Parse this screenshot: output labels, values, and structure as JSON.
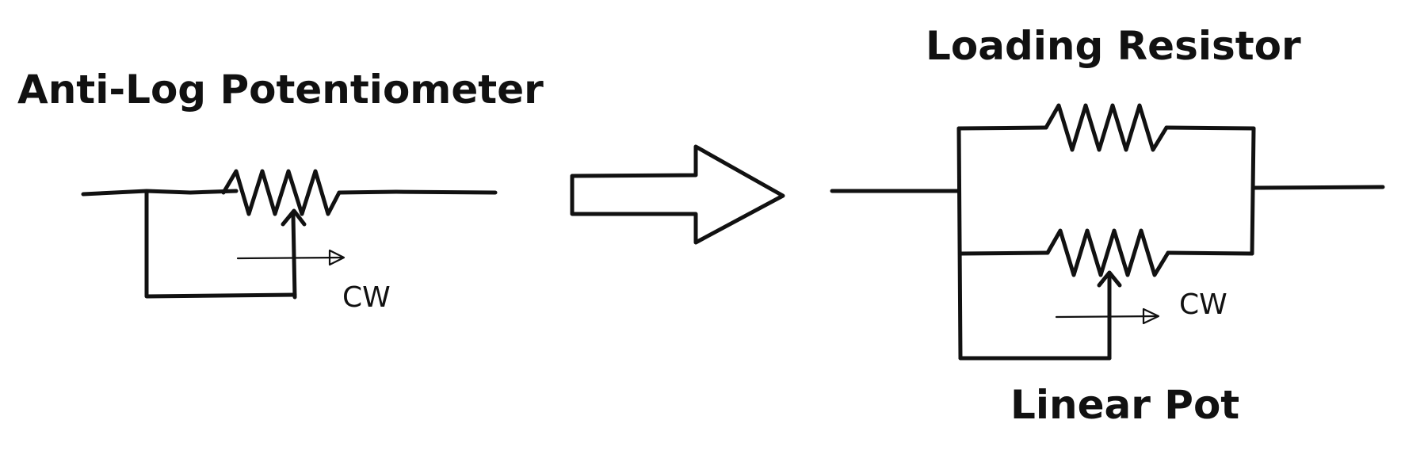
{
  "left_block": {
    "title": "Anti-Log Potentiometer",
    "cw_label": "CW"
  },
  "right_block": {
    "title_top": "Loading Resistor",
    "title_bottom": "Linear Pot",
    "cw_label": "CW"
  },
  "colors": {
    "ink": "#111111",
    "background": "#ffffff"
  }
}
